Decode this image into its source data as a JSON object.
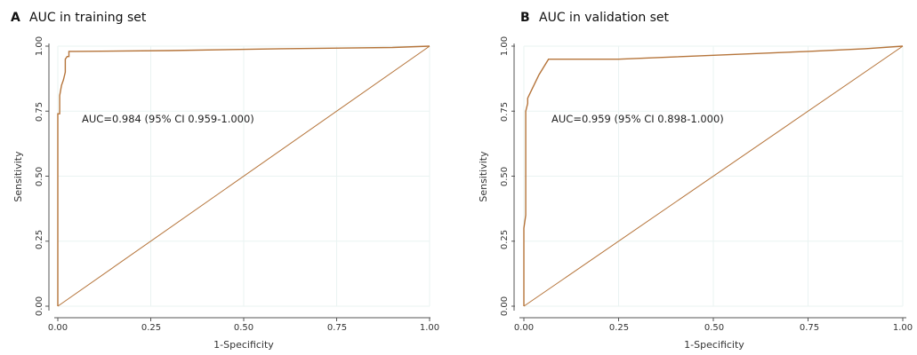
{
  "chart_data": [
    {
      "type": "line",
      "panel_letter": "A",
      "title": "AUC in training set",
      "xlabel": "1-Specificity",
      "ylabel": "Sensitivity",
      "xlim": [
        0,
        1
      ],
      "ylim": [
        0,
        1
      ],
      "xticks": [
        "0.00",
        "0.25",
        "0.50",
        "0.75",
        "1.00"
      ],
      "yticks": [
        "0.00",
        "0.25",
        "0.50",
        "0.75",
        "1.00"
      ],
      "grid": true,
      "annotation": "AUC=0.984 (95% CI 0.959-1.000)",
      "line_color": "#b5743a",
      "series": [
        {
          "x": [
            0,
            0,
            0.005,
            0.005,
            0.01,
            0.015,
            0.02,
            0.02,
            0.025,
            0.03,
            0.03,
            0.035,
            0.05,
            0.3,
            0.6,
            0.9,
            1.0
          ],
          "y": [
            0,
            0.74,
            0.74,
            0.81,
            0.85,
            0.87,
            0.9,
            0.95,
            0.96,
            0.96,
            0.98,
            0.98,
            0.98,
            0.983,
            0.99,
            0.995,
            1.0
          ]
        },
        {
          "x": [
            0,
            1
          ],
          "y": [
            0,
            1
          ]
        }
      ]
    },
    {
      "type": "line",
      "panel_letter": "B",
      "title": "AUC in validation set",
      "xlabel": "1-Specificity",
      "ylabel": "Sensitivity",
      "xlim": [
        0,
        1
      ],
      "ylim": [
        0,
        1
      ],
      "xticks": [
        "0.00",
        "0.25",
        "0.50",
        "0.75",
        "1.00"
      ],
      "yticks": [
        "0.00",
        "0.25",
        "0.50",
        "0.75",
        "1.00"
      ],
      "grid": true,
      "annotation": "AUC=0.959 (95% CI 0.898-1.000)",
      "line_color": "#b5743a",
      "series": [
        {
          "x": [
            0,
            0,
            0.005,
            0.005,
            0.01,
            0.01,
            0.02,
            0.04,
            0.065,
            0.08,
            0.25,
            0.5,
            0.75,
            0.9,
            1.0
          ],
          "y": [
            0,
            0.3,
            0.35,
            0.75,
            0.78,
            0.8,
            0.83,
            0.89,
            0.95,
            0.95,
            0.95,
            0.965,
            0.98,
            0.99,
            1.0
          ]
        },
        {
          "x": [
            0,
            1
          ],
          "y": [
            0,
            1
          ]
        }
      ]
    }
  ]
}
